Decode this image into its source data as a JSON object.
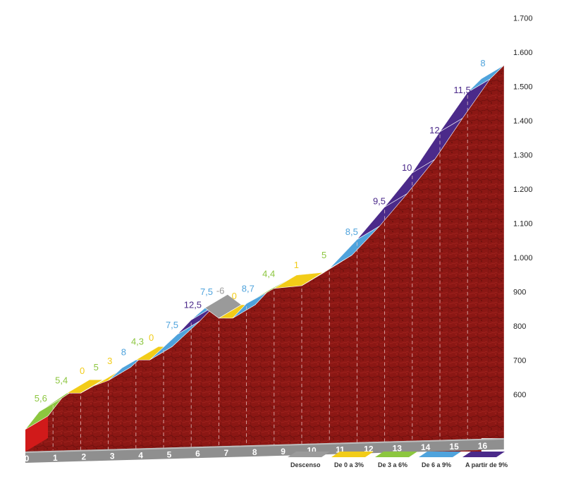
{
  "chart_data": {
    "type": "area",
    "title": "",
    "xlabel": "",
    "ylabel": "",
    "x_ticks": [
      "0",
      "1",
      "2",
      "3",
      "4",
      "5",
      "6",
      "7",
      "8",
      "9",
      "10",
      "11",
      "12",
      "13",
      "14",
      "15",
      "16"
    ],
    "y_ticks": [
      "600",
      "700",
      "800",
      "900",
      "1.000",
      "1.100",
      "1.200",
      "1.300",
      "1.400",
      "1.500",
      "1.600",
      "1.700"
    ],
    "ylim": [
      600,
      1700
    ],
    "xlim": [
      0,
      16
    ],
    "legend_position": "bottom-right",
    "categories": [
      {
        "key": "descenso",
        "label": "Descenso",
        "color": "#9a9a9a"
      },
      {
        "key": "0-3",
        "label": "De 0 a 3%",
        "color": "#f2cc18"
      },
      {
        "key": "3-6",
        "label": "De 3 a 6%",
        "color": "#8cc63f"
      },
      {
        "key": "6-9",
        "label": "De 6 a 9%",
        "color": "#4fa3dc"
      },
      {
        "key": "9+",
        "label": "A partir de 9%",
        "color": "#4b2a8a"
      }
    ],
    "segments": [
      {
        "x0": 0,
        "x1": 0.5,
        "y0": 640,
        "y1": 692,
        "gradient": "5,6",
        "category": "3-6"
      },
      {
        "x0": 0.5,
        "x1": 1.5,
        "y0": 692,
        "y1": 746,
        "gradient": "5,4",
        "category": "3-6"
      },
      {
        "x0": 1.5,
        "x1": 2.0,
        "y0": 746,
        "y1": 746,
        "gradient": "0",
        "category": "0-3"
      },
      {
        "x0": 2.0,
        "x1": 2.5,
        "y0": 746,
        "y1": 768,
        "gradient": "5",
        "category": "3-6"
      },
      {
        "x0": 2.5,
        "x1": 3.0,
        "y0": 768,
        "y1": 783,
        "gradient": "3",
        "category": "0-3"
      },
      {
        "x0": 3.0,
        "x1": 3.5,
        "y0": 783,
        "y1": 820,
        "gradient": "8",
        "category": "6-9"
      },
      {
        "x0": 3.5,
        "x1": 4.0,
        "y0": 820,
        "y1": 843,
        "gradient": "4,3",
        "category": "3-6"
      },
      {
        "x0": 4.0,
        "x1": 4.5,
        "y0": 843,
        "y1": 843,
        "gradient": "0",
        "category": "0-3"
      },
      {
        "x0": 4.5,
        "x1": 5.5,
        "y0": 843,
        "y1": 918,
        "gradient": "7,5",
        "category": "6-9"
      },
      {
        "x0": 5.5,
        "x1": 6.0,
        "y0": 918,
        "y1": 960,
        "gradient": "12,5",
        "category": "9+"
      },
      {
        "x0": 6.0,
        "x1": 6.5,
        "y0": 960,
        "y1": 995,
        "gradient": "7,5",
        "category": "6-9"
      },
      {
        "x0": 6.5,
        "x1": 7.0,
        "y0": 995,
        "y1": 965,
        "gradient": "-6",
        "category": "descenso"
      },
      {
        "x0": 7.0,
        "x1": 7.5,
        "y0": 965,
        "y1": 965,
        "gradient": "0",
        "category": "0-3"
      },
      {
        "x0": 7.5,
        "x1": 8.0,
        "y0": 965,
        "y1": 1008,
        "gradient": "8,7",
        "category": "6-9"
      },
      {
        "x0": 8.0,
        "x1": 9.0,
        "y0": 1008,
        "y1": 1052,
        "gradient": "4,4",
        "category": "3-6"
      },
      {
        "x0": 9.0,
        "x1": 10.0,
        "y0": 1052,
        "y1": 1060,
        "gradient": "1",
        "category": "0-3"
      },
      {
        "x0": 10.0,
        "x1": 11.0,
        "y0": 1060,
        "y1": 1110,
        "gradient": "5",
        "category": "3-6"
      },
      {
        "x0": 11.0,
        "x1": 12.0,
        "y0": 1110,
        "y1": 1195,
        "gradient": "8,5",
        "category": "6-9"
      },
      {
        "x0": 12.0,
        "x1": 13.0,
        "y0": 1195,
        "y1": 1290,
        "gradient": "9,5",
        "category": "9+"
      },
      {
        "x0": 13.0,
        "x1": 14.0,
        "y0": 1290,
        "y1": 1390,
        "gradient": "10",
        "category": "9+"
      },
      {
        "x0": 14.0,
        "x1": 15.0,
        "y0": 1390,
        "y1": 1510,
        "gradient": "12",
        "category": "9+"
      },
      {
        "x0": 15.0,
        "x1": 16.0,
        "y0": 1510,
        "y1": 1625,
        "gradient": "11,5",
        "category": "9+"
      },
      {
        "x0": 16.0,
        "x1": 16.5,
        "y0": 1625,
        "y1": 1665,
        "gradient": "8",
        "category": "6-9"
      }
    ]
  }
}
